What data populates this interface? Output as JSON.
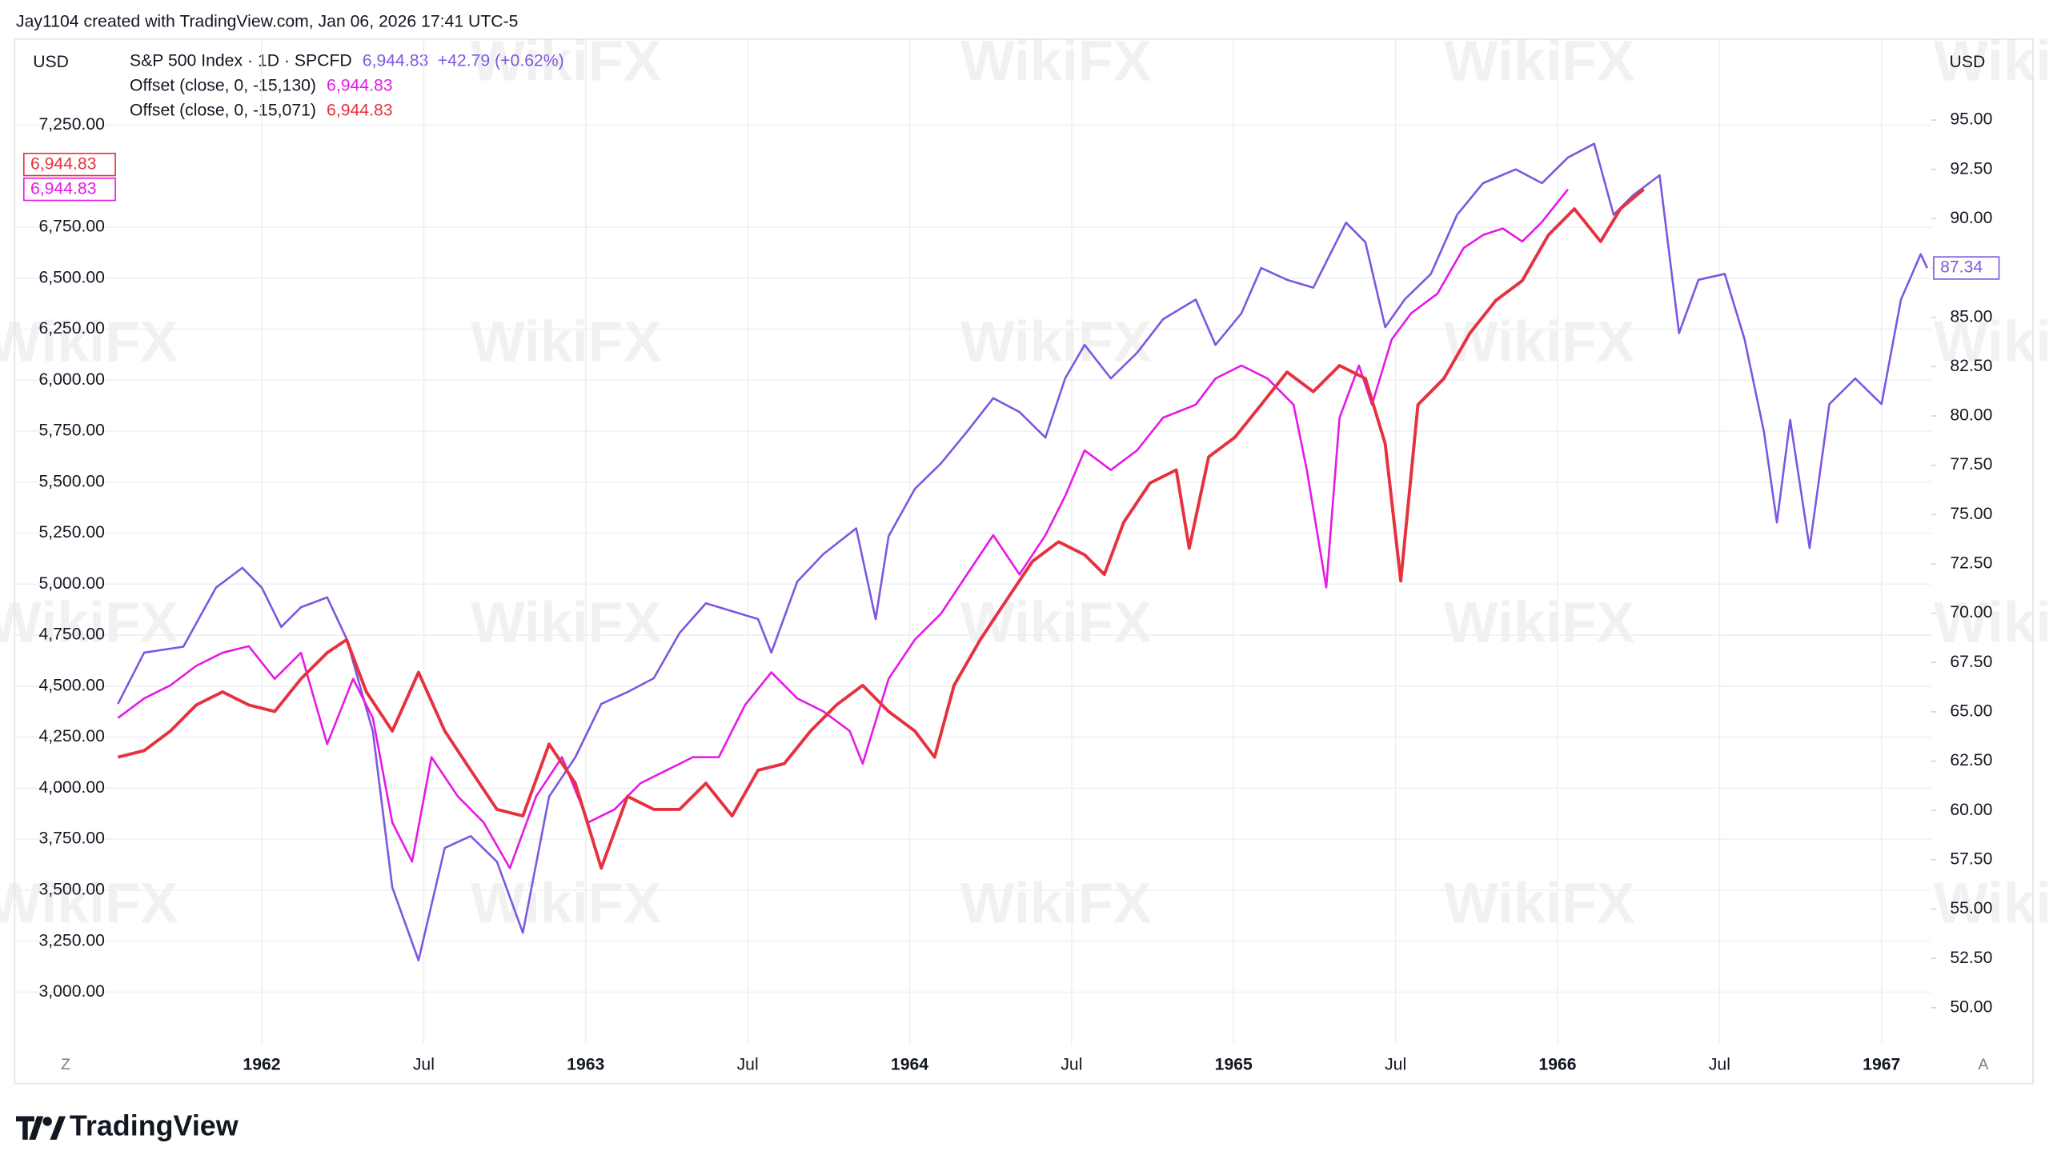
{
  "chart_data": {
    "type": "line",
    "credit": "Jay1104 created with TradingView.com, Jan 06, 2026 17:41 UTC-5",
    "y_label": "USD",
    "y2_label": "USD",
    "watermark": "WikiFX",
    "brand": "TradingView",
    "button_left": "Z",
    "button_right": "A",
    "xlim": [
      1961.556,
      1967.153
    ],
    "xticks": [
      1962,
      {
        "value": 1962.5,
        "label": "Jul"
      },
      1963,
      {
        "value": 1963.5,
        "label": "Jul"
      },
      1964,
      {
        "value": 1964.5,
        "label": "Jul"
      },
      1965,
      {
        "value": 1965.5,
        "label": "Jul"
      },
      1966,
      {
        "value": 1966.5,
        "label": "Jul"
      },
      1967
    ],
    "ylim": [
      2744,
      7672
    ],
    "yticks": [
      {
        "value": 3000,
        "label": "3,000.00"
      },
      {
        "value": 3250,
        "label": "3,250.00"
      },
      {
        "value": 3500,
        "label": "3,500.00"
      },
      {
        "value": 3750,
        "label": "3,750.00"
      },
      {
        "value": 4000,
        "label": "4,000.00"
      },
      {
        "value": 4250,
        "label": "4,250.00"
      },
      {
        "value": 4500,
        "label": "4,500.00"
      },
      {
        "value": 4750,
        "label": "4,750.00"
      },
      {
        "value": 5000,
        "label": "5,000.00"
      },
      {
        "value": 5250,
        "label": "5,250.00"
      },
      {
        "value": 5500,
        "label": "5,500.00"
      },
      {
        "value": 5750,
        "label": "5,750.00"
      },
      {
        "value": 6000,
        "label": "6,000.00"
      },
      {
        "value": 6250,
        "label": "6,250.00"
      },
      {
        "value": 6500,
        "label": "6,500.00"
      },
      {
        "value": 6750,
        "label": "6,750.00"
      },
      {
        "value": 7250,
        "label": "7,250.00"
      }
    ],
    "y2lim": [
      48.14,
      99.1
    ],
    "y2ticks": [
      {
        "value": 50,
        "label": "50.00"
      },
      {
        "value": 52.5,
        "label": "52.50"
      },
      {
        "value": 55,
        "label": "55.00"
      },
      {
        "value": 57.5,
        "label": "57.50"
      },
      {
        "value": 60,
        "label": "60.00"
      },
      {
        "value": 62.5,
        "label": "62.50"
      },
      {
        "value": 65,
        "label": "65.00"
      },
      {
        "value": 67.5,
        "label": "67.50"
      },
      {
        "value": 70,
        "label": "70.00"
      },
      {
        "value": 72.5,
        "label": "72.50"
      },
      {
        "value": 75,
        "label": "75.00"
      },
      {
        "value": 77.5,
        "label": "77.50"
      },
      {
        "value": 80,
        "label": "80.00"
      },
      {
        "value": 82.5,
        "label": "82.50"
      },
      {
        "value": 85,
        "label": "85.00"
      },
      {
        "value": 87.5,
        "label": "87.50"
      },
      {
        "value": 90,
        "label": "90.00"
      },
      {
        "value": 92.5,
        "label": "92.50"
      },
      {
        "value": 95,
        "label": "95.00"
      }
    ],
    "grid": true,
    "series": [
      {
        "name": "S&P 500 Index · 1D · SPCFD",
        "color": "#7e57e0",
        "axis": "y2",
        "width": 1.6,
        "legend_value": "6,944.83",
        "legend_change": "+42.79 (+0.62%)",
        "axis_label": "87.34",
        "x": [
          1961.556,
          1961.637,
          1961.758,
          1961.859,
          1961.94,
          1962.0,
          1962.06,
          1962.121,
          1962.202,
          1962.262,
          1962.343,
          1962.403,
          1962.484,
          1962.565,
          1962.645,
          1962.726,
          1962.806,
          1962.887,
          1962.968,
          1963.048,
          1963.129,
          1963.21,
          1963.29,
          1963.371,
          1963.452,
          1963.532,
          1963.573,
          1963.653,
          1963.734,
          1963.835,
          1963.895,
          1963.935,
          1964.016,
          1964.097,
          1964.177,
          1964.258,
          1964.339,
          1964.419,
          1964.48,
          1964.54,
          1964.621,
          1964.702,
          1964.782,
          1964.883,
          1964.944,
          1965.024,
          1965.085,
          1965.165,
          1965.246,
          1965.347,
          1965.407,
          1965.468,
          1965.528,
          1965.609,
          1965.69,
          1965.77,
          1965.871,
          1965.952,
          1966.032,
          1966.113,
          1966.173,
          1966.234,
          1966.315,
          1966.375,
          1966.435,
          1966.516,
          1966.577,
          1966.637,
          1966.677,
          1966.718,
          1966.778,
          1966.839,
          1966.919,
          1967.0,
          1967.06,
          1967.121,
          1967.141
        ],
        "values": [
          65.4,
          68.0,
          68.3,
          71.3,
          72.3,
          71.3,
          69.3,
          70.3,
          70.8,
          68.7,
          64.0,
          56.1,
          52.4,
          58.1,
          58.7,
          57.4,
          53.8,
          60.7,
          62.7,
          65.4,
          66.0,
          66.7,
          69.0,
          70.5,
          70.1,
          69.7,
          68.0,
          71.6,
          73.0,
          74.3,
          69.7,
          73.9,
          76.3,
          77.6,
          79.2,
          80.9,
          80.2,
          78.9,
          81.9,
          83.6,
          81.9,
          83.2,
          84.9,
          85.9,
          83.6,
          85.2,
          87.5,
          86.9,
          86.5,
          89.8,
          88.8,
          84.5,
          85.9,
          87.2,
          90.2,
          91.8,
          92.5,
          91.8,
          93.1,
          93.8,
          90.2,
          91.2,
          92.2,
          84.2,
          86.9,
          87.2,
          83.9,
          79.2,
          74.6,
          79.8,
          73.3,
          80.6,
          81.9,
          80.6,
          85.9,
          88.2,
          87.5
        ]
      },
      {
        "name": "Offset (close, 0, -15,130)",
        "color": "#e619e6",
        "width": 1.6,
        "legend_value": "6,944.83",
        "axis_label": "6,944.83",
        "x": [
          1961.556,
          1961.637,
          1961.718,
          1961.798,
          1961.879,
          1961.96,
          1962.04,
          1962.121,
          1962.202,
          1962.282,
          1962.343,
          1962.403,
          1962.464,
          1962.524,
          1962.605,
          1962.685,
          1962.766,
          1962.847,
          1962.927,
          1963.008,
          1963.089,
          1963.169,
          1963.25,
          1963.331,
          1963.411,
          1963.492,
          1963.573,
          1963.653,
          1963.734,
          1963.815,
          1963.855,
          1963.935,
          1964.016,
          1964.097,
          1964.177,
          1964.258,
          1964.339,
          1964.419,
          1964.48,
          1964.54,
          1964.621,
          1964.702,
          1964.782,
          1964.883,
          1964.944,
          1965.024,
          1965.105,
          1965.185,
          1965.226,
          1965.286,
          1965.327,
          1965.387,
          1965.427,
          1965.488,
          1965.548,
          1965.629,
          1965.71,
          1965.77,
          1965.831,
          1965.891,
          1965.952,
          1966.032
        ],
        "values": [
          4344,
          4440,
          4504,
          4600,
          4664,
          4696,
          4536,
          4664,
          4216,
          4536,
          4344,
          3832,
          3640,
          4152,
          3960,
          3832,
          3608,
          3960,
          4152,
          3832,
          3896,
          4024,
          4088,
          4152,
          4152,
          4408,
          4568,
          4440,
          4376,
          4280,
          4120,
          4536,
          4728,
          4856,
          5048,
          5240,
          5048,
          5240,
          5432,
          5656,
          5560,
          5656,
          5816,
          5880,
          6008,
          6072,
          6008,
          5880,
          5560,
          4984,
          5816,
          6072,
          5880,
          6200,
          6328,
          6424,
          6648,
          6712,
          6744,
          6680,
          6776,
          6936
        ]
      },
      {
        "name": "Offset (close, 0, -15,071)",
        "color": "#e5323e",
        "width": 2.4,
        "legend_value": "6,944.83",
        "axis_label": "6,944.83",
        "x": [
          1961.556,
          1961.637,
          1961.718,
          1961.798,
          1961.879,
          1961.96,
          1962.04,
          1962.121,
          1962.202,
          1962.262,
          1962.323,
          1962.403,
          1962.484,
          1962.565,
          1962.645,
          1962.726,
          1962.806,
          1962.887,
          1962.968,
          1963.048,
          1963.129,
          1963.21,
          1963.29,
          1963.371,
          1963.452,
          1963.532,
          1963.613,
          1963.694,
          1963.774,
          1963.855,
          1963.935,
          1964.016,
          1964.077,
          1964.137,
          1964.218,
          1964.298,
          1964.379,
          1964.46,
          1964.54,
          1964.601,
          1964.661,
          1964.742,
          1964.823,
          1964.863,
          1964.923,
          1965.004,
          1965.085,
          1965.165,
          1965.246,
          1965.327,
          1965.407,
          1965.468,
          1965.516,
          1965.569,
          1965.649,
          1965.73,
          1965.81,
          1965.891,
          1965.972,
          1966.052,
          1966.133,
          1966.194,
          1966.266
        ],
        "values": [
          4152,
          4184,
          4280,
          4408,
          4472,
          4408,
          4376,
          4536,
          4664,
          4728,
          4472,
          4280,
          4568,
          4280,
          4088,
          3896,
          3864,
          4216,
          4024,
          3608,
          3960,
          3896,
          3896,
          4024,
          3864,
          4088,
          4120,
          4280,
          4408,
          4504,
          4376,
          4280,
          4152,
          4504,
          4728,
          4920,
          5112,
          5208,
          5144,
          5048,
          5304,
          5496,
          5560,
          5176,
          5624,
          5720,
          5880,
          6040,
          5944,
          6072,
          6008,
          5688,
          5016,
          5880,
          6008,
          6232,
          6392,
          6488,
          6712,
          6840,
          6680,
          6840,
          6936
        ]
      }
    ]
  }
}
